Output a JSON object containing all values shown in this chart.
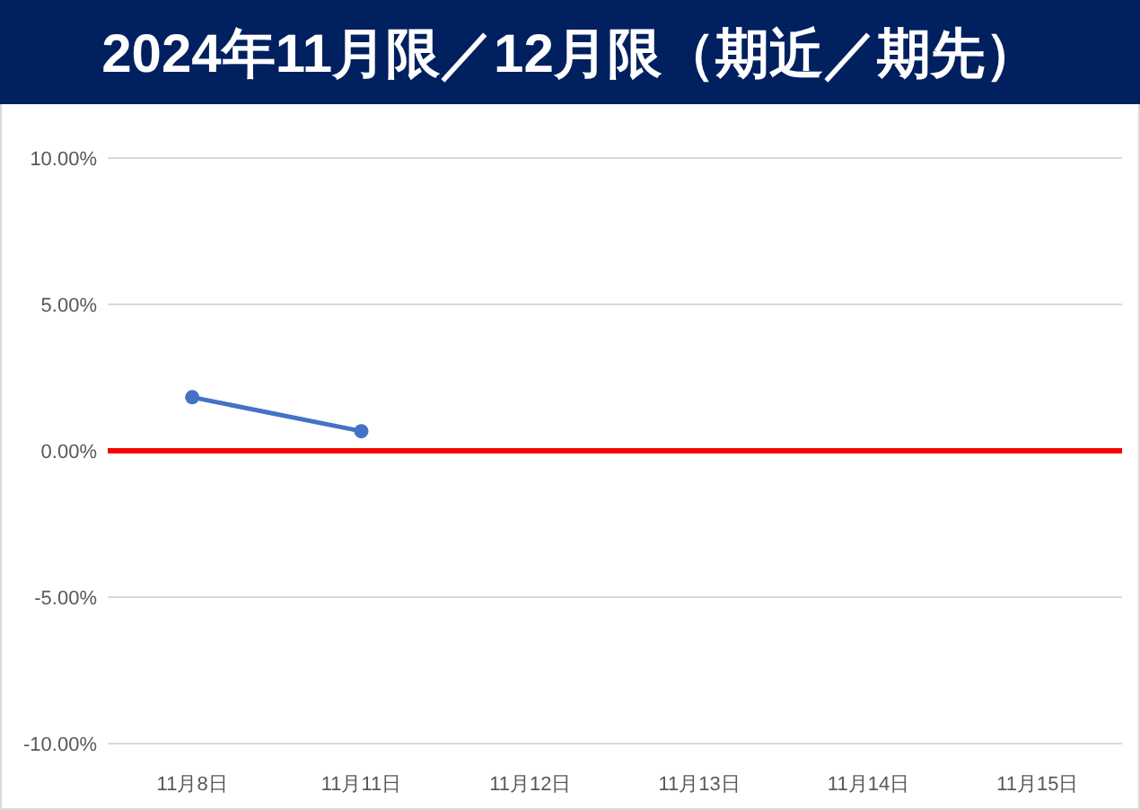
{
  "chart_data": {
    "type": "line",
    "title": "2024年11月限／12月限（期近／期先）",
    "categories": [
      "11月8日",
      "11月11日",
      "11月12日",
      "11月13日",
      "11月14日",
      "11月15日"
    ],
    "series": [
      {
        "color": "#4472c4",
        "values": [
          1.83,
          0.67,
          null,
          null,
          null,
          null
        ]
      }
    ],
    "ylim": [
      -10,
      10
    ],
    "yticks": [
      {
        "value": -10,
        "label": "-10.00%"
      },
      {
        "value": -5,
        "label": "-5.00%"
      },
      {
        "value": 0,
        "label": "0.00%"
      },
      {
        "value": 5,
        "label": "5.00%"
      },
      {
        "value": 10,
        "label": "10.00%"
      }
    ],
    "ref_lines": [
      {
        "axis": "y",
        "value": 0,
        "color": "#ff0000"
      }
    ],
    "grid": "y",
    "marker": "circle",
    "line_style": "solid",
    "legend": false
  }
}
